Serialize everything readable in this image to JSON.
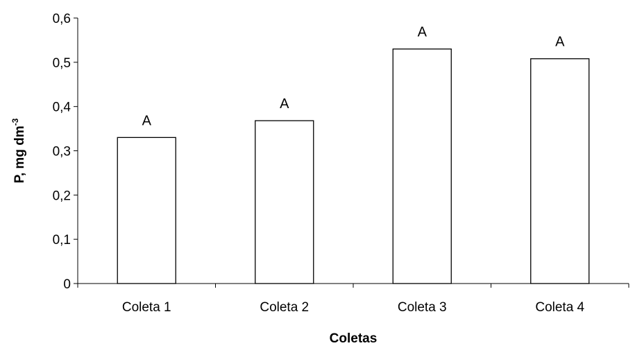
{
  "chart_data": {
    "type": "bar",
    "categories": [
      "Coleta 1",
      "Coleta 2",
      "Coleta 3",
      "Coleta 4"
    ],
    "values": [
      0.33,
      0.368,
      0.53,
      0.508
    ],
    "data_labels": [
      "A",
      "A",
      "A",
      "A"
    ],
    "title": "",
    "xlabel": "Coletas",
    "ylabel": {
      "main": "P, mg dm",
      "superscript": "-3"
    },
    "ylim": [
      0,
      0.6
    ],
    "yticks": [
      "0",
      "0,1",
      "0,2",
      "0,3",
      "0,4",
      "0,5",
      "0,6"
    ],
    "grid": false,
    "bar_fill": "#ffffff",
    "bar_stroke": "#000000"
  }
}
